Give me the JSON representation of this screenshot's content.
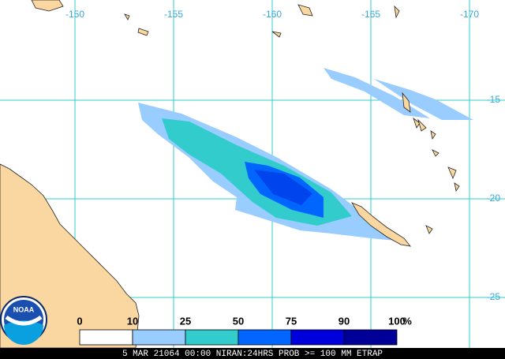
{
  "map": {
    "longitudes": [
      -150,
      -155,
      -160,
      -165,
      -170
    ],
    "latitudes": [
      -15,
      -20,
      -25
    ],
    "legend": {
      "ticks": [
        0,
        10,
        25,
        50,
        75,
        90,
        100
      ],
      "unit": "%",
      "colors": [
        "#ffffff",
        "#99ccff",
        "#33cccc",
        "#0066ff",
        "#0000dd",
        "#000099"
      ]
    },
    "logo": "NOAA",
    "caption": "5 MAR 21064 00:00 NIRAN:24HRS PROB >= 100 MM ETRAP"
  }
}
